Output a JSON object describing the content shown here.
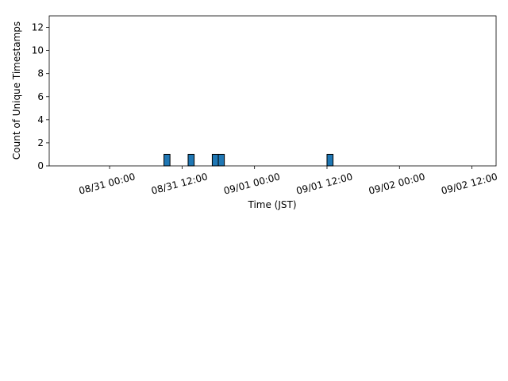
{
  "chart_data": {
    "type": "histogram",
    "xlabel": "Time (JST)",
    "ylabel": "Count of Unique Timestamps",
    "bins": [
      -9,
      -8,
      -7,
      -6,
      -5,
      -4,
      -3,
      -2,
      -1,
      0,
      1,
      2,
      3,
      4,
      5,
      6,
      7,
      8,
      9,
      10,
      11,
      12,
      13,
      14,
      15,
      16,
      17,
      18,
      19,
      20,
      21,
      22,
      23,
      24,
      25,
      26,
      27,
      28,
      29,
      30,
      31,
      32,
      33,
      34,
      35,
      36,
      37,
      38,
      39,
      40,
      41,
      42,
      43,
      44,
      45,
      46,
      47,
      48,
      49,
      50,
      51,
      52,
      53,
      54,
      55,
      56,
      57,
      58,
      59,
      60,
      61,
      62
    ],
    "values": [
      0,
      0,
      0,
      0,
      0,
      0,
      0,
      0,
      0,
      0,
      0,
      0,
      0,
      0,
      0,
      0,
      0,
      0,
      1,
      0,
      0,
      0,
      1,
      0,
      0,
      0,
      1,
      1,
      0,
      0,
      0,
      0,
      0,
      0,
      0,
      0,
      0,
      0,
      0,
      0,
      0,
      0,
      0,
      0,
      0,
      1,
      0,
      0,
      0,
      0,
      0,
      0,
      0,
      0,
      0,
      0,
      0,
      0,
      0,
      0,
      0,
      0,
      0,
      0,
      0,
      0,
      0,
      0,
      0,
      0,
      0
    ],
    "color": "#1f77b4",
    "xlim": [
      -10,
      64
    ],
    "xticks": [
      {
        "value": 0,
        "label": "08/31 00:00"
      },
      {
        "value": 12,
        "label": "08/31 12:00"
      },
      {
        "value": 24,
        "label": "09/01 00:00"
      },
      {
        "value": 36,
        "label": "09/01 12:00"
      },
      {
        "value": 48,
        "label": "09/02 00:00"
      },
      {
        "value": 60,
        "label": "09/02 12:00"
      }
    ],
    "ylim": [
      0,
      13
    ],
    "yticks": [
      0,
      2,
      4,
      6,
      8,
      10,
      12
    ]
  }
}
